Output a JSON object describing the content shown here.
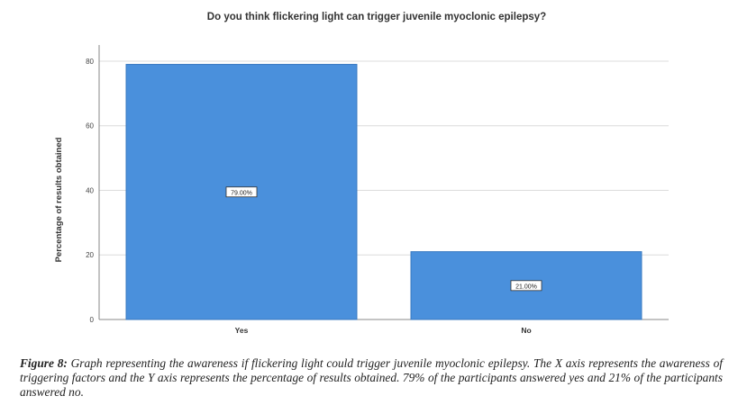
{
  "chart_data": {
    "type": "bar",
    "title": "Do you think flickering light can trigger juvenile myoclonic epilepsy?",
    "xlabel": "",
    "ylabel": "Percentage of results obtained",
    "categories": [
      "Yes",
      "No"
    ],
    "values": [
      79.0,
      21.0
    ],
    "data_labels": [
      "79.00%",
      "21.00%"
    ],
    "ylim": [
      0,
      85
    ],
    "yticks": [
      0,
      20,
      40,
      60,
      80
    ],
    "grid": true,
    "colors": {
      "bar": "#4a90dc",
      "bar_edge": "#3878c0",
      "grid": "#dcdcdc",
      "axis": "#888888"
    }
  },
  "caption": {
    "label": "Figure 8:",
    "text": " Graph representing the awareness if flickering light could trigger juvenile myoclonic epilepsy. The X axis represents the awareness of triggering factors and the Y axis represents the percentage of results obtained. 79% of the participants answered yes and 21% of the participants answered no."
  }
}
